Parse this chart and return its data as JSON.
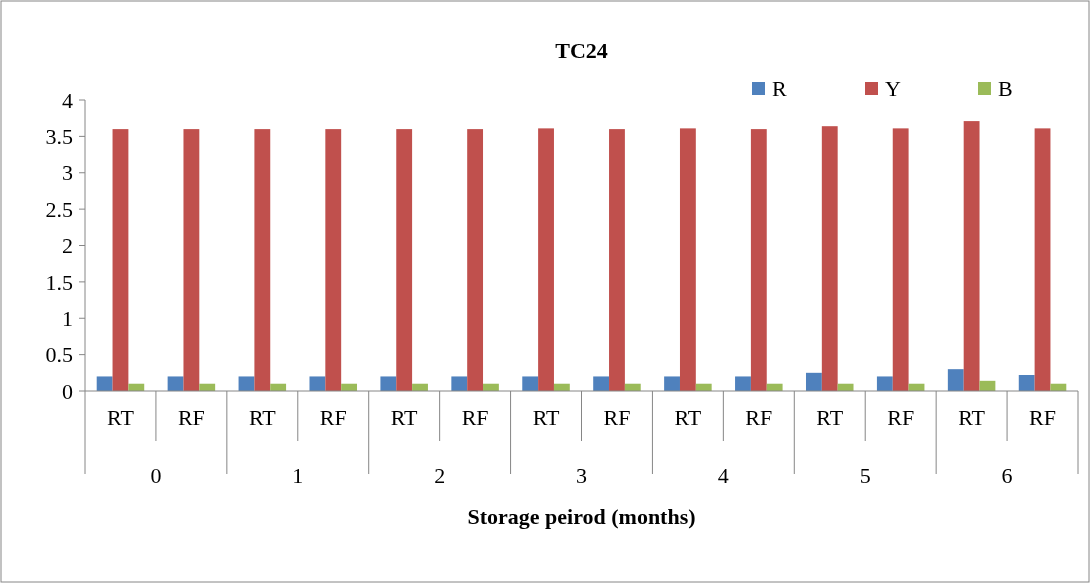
{
  "chart_data": {
    "type": "bar",
    "title": "TC24",
    "xlabel": "Storage peirod (months)",
    "categories": [
      "RT",
      "RF",
      "RT",
      "RF",
      "RT",
      "RF",
      "RT",
      "RF",
      "RT",
      "RF",
      "RT",
      "RF",
      "RT",
      "RF"
    ],
    "annotations": [
      "0",
      "1",
      "2",
      "3",
      "4",
      "5",
      "6"
    ],
    "series": [
      {
        "name": "R",
        "color": "#4f81bd",
        "values": [
          0.2,
          0.2,
          0.2,
          0.2,
          0.2,
          0.2,
          0.2,
          0.2,
          0.2,
          0.2,
          0.25,
          0.2,
          0.3,
          0.22
        ]
      },
      {
        "name": "Y",
        "color": "#c0504d",
        "values": [
          3.6,
          3.6,
          3.6,
          3.6,
          3.6,
          3.6,
          3.61,
          3.6,
          3.61,
          3.6,
          3.64,
          3.61,
          3.71,
          3.61
        ]
      },
      {
        "name": "B",
        "color": "#9bbb59",
        "values": [
          0.1,
          0.1,
          0.1,
          0.1,
          0.1,
          0.1,
          0.1,
          0.1,
          0.1,
          0.1,
          0.1,
          0.1,
          0.14,
          0.1
        ]
      }
    ],
    "ylim": [
      0,
      4
    ],
    "yticks": [
      0,
      0.5,
      1,
      1.5,
      2,
      2.5,
      3,
      3.5,
      4
    ],
    "legend": "top right"
  }
}
